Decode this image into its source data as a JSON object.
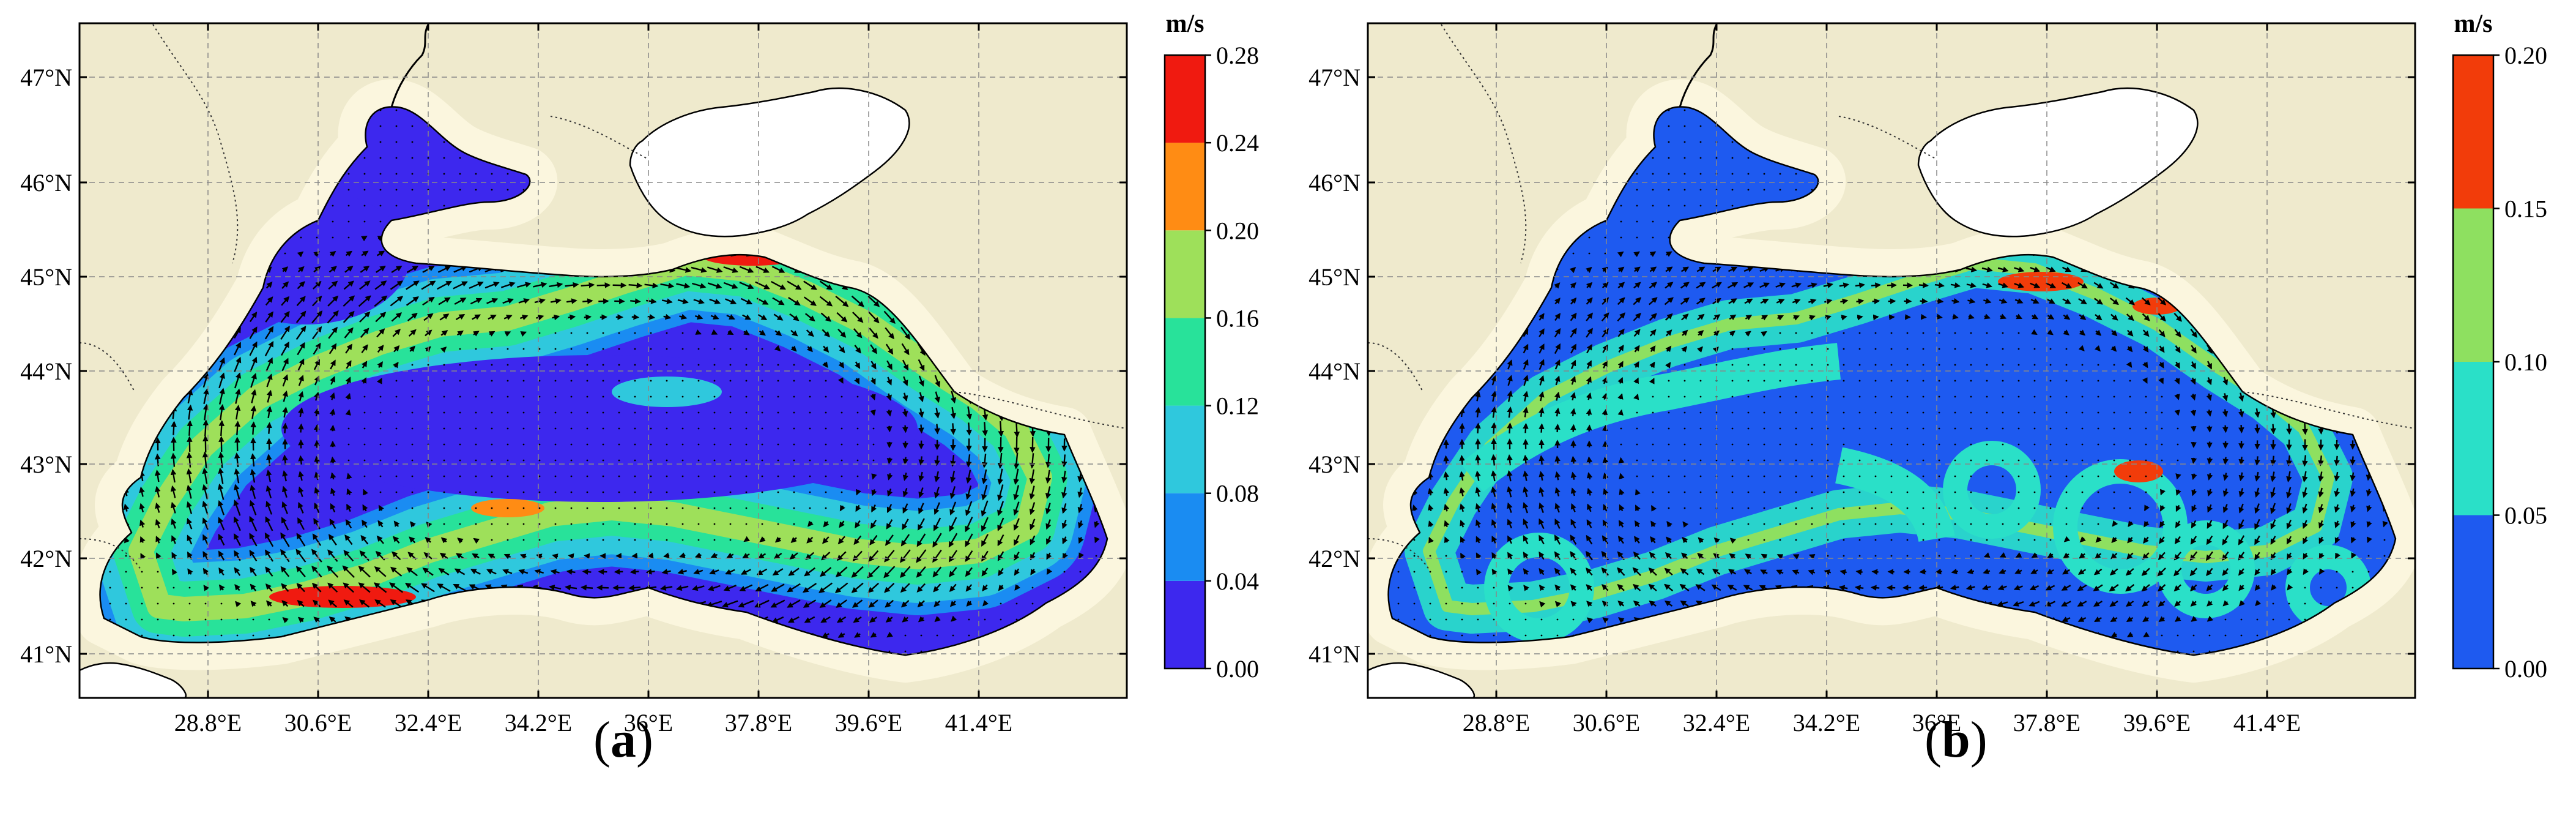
{
  "panels": [
    {
      "id": "a",
      "caption_open": "(",
      "caption_letter": "a",
      "caption_close": ")",
      "colorbar": {
        "unit": "m/s",
        "ticks": [
          "0.00",
          "0.04",
          "0.08",
          "0.12",
          "0.16",
          "0.20",
          "0.24",
          "0.28"
        ],
        "colors": [
          "#3d28ee",
          "#1a8cf2",
          "#2fc8dd",
          "#28e29a",
          "#9ee05a",
          "#ff8c14",
          "#f01a10"
        ]
      },
      "lat_labels": [
        "41°N",
        "42°N",
        "43°N",
        "44°N",
        "45°N",
        "46°N",
        "47°N"
      ],
      "lon_labels": [
        "28.8°E",
        "30.6°E",
        "32.4°E",
        "34.2°E",
        "36°E",
        "37.8°E",
        "39.6°E",
        "41.4°E"
      ],
      "background_class": "weak"
    },
    {
      "id": "b",
      "caption_open": "(",
      "caption_letter": "b",
      "caption_close": ")",
      "colorbar": {
        "unit": "m/s",
        "ticks": [
          "0.00",
          "0.05",
          "0.10",
          "0.15",
          "0.20"
        ],
        "colors": [
          "#1e5af0",
          "#2ae0c8",
          "#8ee060",
          "#f23c0a"
        ]
      },
      "lat_labels": [
        "41°N",
        "42°N",
        "43°N",
        "44°N",
        "45°N",
        "46°N",
        "47°N"
      ],
      "lon_labels": [
        "28.8°E",
        "30.6°E",
        "32.4°E",
        "34.2°E",
        "36°E",
        "37.8°E",
        "39.6°E",
        "41.4°E"
      ],
      "background_class": "blue"
    }
  ]
}
